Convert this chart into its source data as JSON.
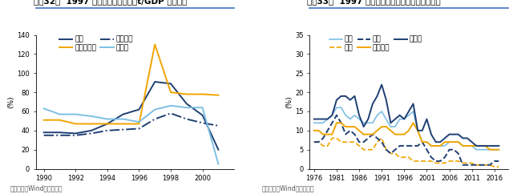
{
  "fig32": {
    "title": "图表32：  1997 年以前亚洲国家外巫t/GDP 比率攀升",
    "ylabel": "(%)",
    "source_note": "资料来源：Wind，华泰研究",
    "xlim": [
      1989.5,
      2002
    ],
    "ylim": [
      0,
      140
    ],
    "yticks": [
      0,
      20,
      40,
      60,
      80,
      100,
      120,
      140
    ],
    "xticks": [
      1990,
      1992,
      1994,
      1996,
      1998,
      2000
    ],
    "series": {
      "泰国": {
        "x": [
          1990,
          1991,
          1992,
          1993,
          1994,
          1995,
          1996,
          1997,
          1998,
          1999,
          2000,
          2001
        ],
        "y": [
          38,
          38,
          37,
          40,
          47,
          57,
          62,
          91,
          89,
          68,
          56,
          20
        ],
        "color": "#1f3f73",
        "linestyle": "-",
        "linewidth": 1.4
      },
      "印度尼西亚": {
        "x": [
          1990,
          1991,
          1992,
          1993,
          1994,
          1995,
          1996,
          1997,
          1998,
          1999,
          2000,
          2001
        ],
        "y": [
          51,
          51,
          47,
          47,
          47,
          47,
          47,
          130,
          80,
          78,
          78,
          77
        ],
        "color": "#f0a500",
        "linestyle": "-",
        "linewidth": 1.4
      },
      "马来西亚": {
        "x": [
          1990,
          1991,
          1992,
          1993,
          1994,
          1995,
          1996,
          1997,
          1998,
          1999,
          2000,
          2001
        ],
        "y": [
          35,
          35,
          35,
          37,
          40,
          41,
          42,
          52,
          58,
          52,
          48,
          45
        ],
        "color": "#1f3f73",
        "linestyle": "-.",
        "linewidth": 1.4
      },
      "菲律宾": {
        "x": [
          1990,
          1991,
          1992,
          1993,
          1994,
          1995,
          1996,
          1997,
          1998,
          1999,
          2000,
          2001
        ],
        "y": [
          63,
          57,
          57,
          55,
          52,
          52,
          49,
          62,
          66,
          64,
          64,
          5
        ],
        "color": "#7dbfe4",
        "linestyle": "-",
        "linewidth": 1.4
      }
    }
  },
  "fig33": {
    "title": "图表33：  1997 年以前美日利率低于新兴市场国家",
    "ylabel": "(%)",
    "source_note": "资料来源：Wind，华泰研究",
    "xlim": [
      1975,
      2019
    ],
    "ylim": [
      0,
      35
    ],
    "yticks": [
      0,
      5,
      10,
      15,
      20,
      25,
      30,
      35
    ],
    "xticks": [
      1976,
      1981,
      1986,
      1991,
      1996,
      2001,
      2006,
      2011,
      2016
    ],
    "series": {
      "泰国": {
        "x": [
          1976,
          1977,
          1978,
          1979,
          1980,
          1981,
          1982,
          1983,
          1984,
          1985,
          1986,
          1987,
          1988,
          1989,
          1990,
          1991,
          1992,
          1993,
          1994,
          1995,
          1996,
          1997,
          1998,
          1999,
          2000,
          2001,
          2002,
          2003,
          2004,
          2005,
          2006,
          2007,
          2008,
          2009,
          2010,
          2011,
          2012,
          2013,
          2014,
          2015,
          2016,
          2017
        ],
        "y": [
          12,
          12,
          12,
          13,
          14,
          16,
          16,
          14,
          13,
          14,
          13,
          12,
          12,
          12,
          14,
          15,
          13,
          11,
          11,
          13,
          13,
          14,
          15,
          10,
          7,
          7,
          6,
          6,
          6,
          6,
          7,
          7,
          7,
          6,
          6,
          6,
          5,
          5,
          5,
          5,
          5,
          5
        ],
        "color": "#7dbfe4",
        "linestyle": "-",
        "linewidth": 1.2
      },
      "日本": {
        "x": [
          1976,
          1977,
          1978,
          1979,
          1980,
          1981,
          1982,
          1983,
          1984,
          1985,
          1986,
          1987,
          1988,
          1989,
          1990,
          1991,
          1992,
          1993,
          1994,
          1995,
          1996,
          1997,
          1998,
          1999,
          2000,
          2001,
          2002,
          2003,
          2004,
          2005,
          2006,
          2007,
          2008,
          2009,
          2010,
          2011,
          2012,
          2013,
          2014,
          2015,
          2016,
          2017
        ],
        "y": [
          7,
          7,
          6,
          6,
          8,
          8,
          7,
          7,
          7,
          7,
          6,
          5,
          5,
          5,
          7,
          8,
          5,
          4,
          4,
          3,
          3,
          3,
          2,
          2,
          2,
          2,
          2,
          1.5,
          1.5,
          1.5,
          2,
          2,
          2,
          1.5,
          1.5,
          1.5,
          1,
          1,
          1,
          1,
          0.5,
          0.5
        ],
        "color": "#f0a500",
        "linestyle": "--",
        "linewidth": 1.2
      },
      "美国": {
        "x": [
          1976,
          1977,
          1978,
          1979,
          1980,
          1981,
          1982,
          1983,
          1984,
          1985,
          1986,
          1987,
          1988,
          1989,
          1990,
          1991,
          1992,
          1993,
          1994,
          1995,
          1996,
          1997,
          1998,
          1999,
          2000,
          2001,
          2002,
          2003,
          2004,
          2005,
          2006,
          2007,
          2008,
          2009,
          2010,
          2011,
          2012,
          2013,
          2014,
          2015,
          2016,
          2017
        ],
        "y": [
          7,
          7,
          8,
          10,
          12,
          14,
          12,
          9,
          10,
          9,
          7,
          7,
          8,
          9,
          8,
          7,
          5,
          4,
          5,
          6,
          6,
          6,
          6,
          6,
          7,
          5,
          3,
          2,
          2,
          3,
          5,
          5,
          4,
          1,
          1,
          1,
          1,
          1,
          1,
          1,
          2,
          2
        ],
        "color": "#1f3f73",
        "linestyle": "--",
        "linewidth": 1.4
      },
      "马来西亚": {
        "x": [
          1976,
          1977,
          1978,
          1979,
          1980,
          1981,
          1982,
          1983,
          1984,
          1985,
          1986,
          1987,
          1988,
          1989,
          1990,
          1991,
          1992,
          1993,
          1994,
          1995,
          1996,
          1997,
          1998,
          1999,
          2000,
          2001,
          2002,
          2003,
          2004,
          2005,
          2006,
          2007,
          2008,
          2009,
          2010,
          2011,
          2012,
          2013,
          2014,
          2015,
          2016,
          2017
        ],
        "y": [
          10,
          10,
          9,
          9,
          9,
          12,
          12,
          11,
          11,
          11,
          10,
          9,
          9,
          9,
          10,
          11,
          11,
          10,
          9,
          9,
          9,
          10,
          12,
          10,
          7,
          7,
          6,
          6,
          6,
          7,
          7,
          7,
          7,
          6,
          6,
          6,
          6,
          6,
          6,
          5,
          5,
          5
        ],
        "color": "#f0a500",
        "linestyle": "-",
        "linewidth": 1.4
      },
      "菲律宾": {
        "x": [
          1976,
          1977,
          1978,
          1979,
          1980,
          1981,
          1982,
          1983,
          1984,
          1985,
          1986,
          1987,
          1988,
          1989,
          1990,
          1991,
          1992,
          1993,
          1994,
          1995,
          1996,
          1997,
          1998,
          1999,
          2000,
          2001,
          2002,
          2003,
          2004,
          2005,
          2006,
          2007,
          2008,
          2009,
          2010,
          2011,
          2012,
          2013,
          2014,
          2015,
          2016,
          2017
        ],
        "y": [
          13,
          13,
          13,
          13,
          14,
          18,
          19,
          19,
          18,
          19,
          14,
          11,
          13,
          17,
          19,
          22,
          18,
          12,
          13,
          14,
          13,
          15,
          17,
          10,
          10,
          13,
          9,
          7,
          7,
          8,
          9,
          9,
          9,
          8,
          8,
          7,
          6,
          6,
          6,
          6,
          6,
          6
        ],
        "color": "#1f3f73",
        "linestyle": "-",
        "linewidth": 1.4
      }
    }
  },
  "title_fontsize": 7.5,
  "label_fontsize": 6.5,
  "tick_fontsize": 6.0,
  "note_fontsize": 5.5,
  "border_color": "#4472c4",
  "title_bg_color": "#dce6f1"
}
